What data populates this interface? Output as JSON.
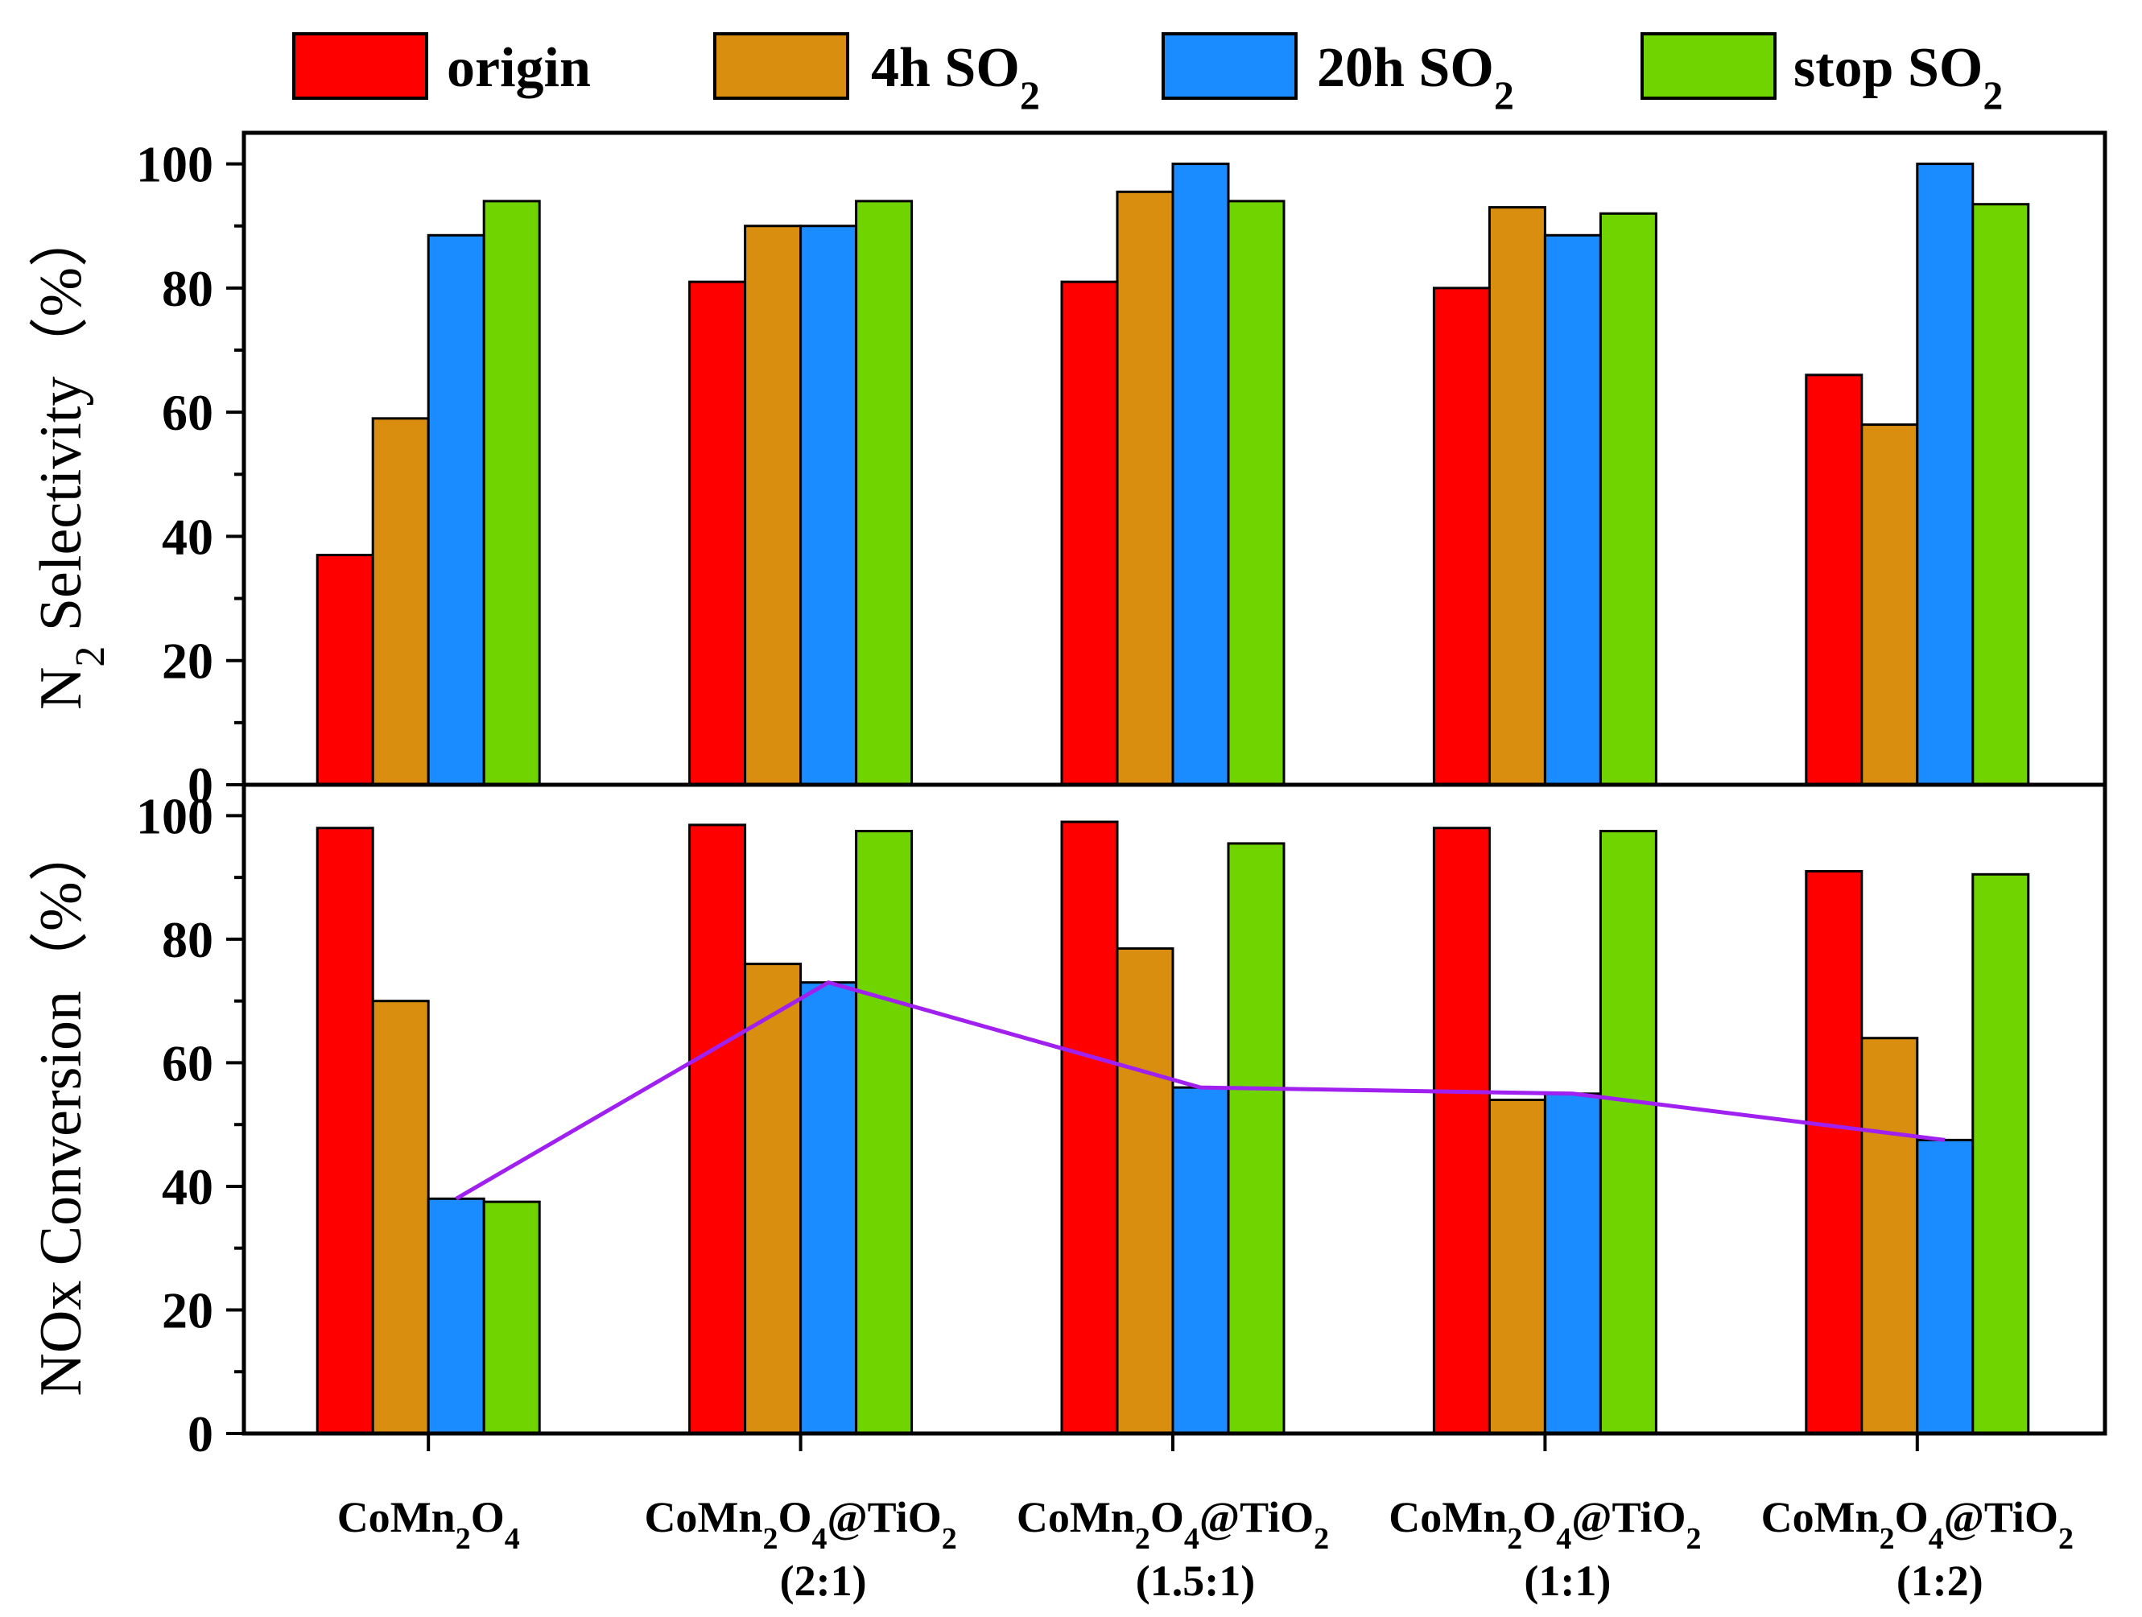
{
  "chart_data": {
    "type": "bar",
    "legend": {
      "placement": "top",
      "entries": [
        {
          "name": "origin",
          "color": "#ff0000",
          "text": "origin",
          "sub": ""
        },
        {
          "name": "4h SO2",
          "color": "#d98e0f",
          "text": "4h SO",
          "sub": "2"
        },
        {
          "name": "20h SO2",
          "color": "#1a8cff",
          "text": "20h SO",
          "sub": "2"
        },
        {
          "name": "stop SO2",
          "color": "#6fd400",
          "text": "stop SO",
          "sub": "2"
        }
      ]
    },
    "categories": [
      {
        "name": "CoMn2O4",
        "line1": [
          [
            "Co",
            ""
          ],
          [
            "Mn",
            ""
          ],
          [
            "2",
            "sub"
          ],
          [
            "O",
            ""
          ],
          [
            "4",
            "sub"
          ]
        ],
        "line2": ""
      },
      {
        "name": "CoMn2O4@TiO2 (2:1)",
        "line1": [
          [
            "Co",
            ""
          ],
          [
            "Mn",
            ""
          ],
          [
            "2",
            "sub"
          ],
          [
            "O",
            ""
          ],
          [
            "4",
            "sub"
          ],
          [
            "@Ti",
            ""
          ],
          [
            "O",
            ""
          ],
          [
            "2",
            "sub"
          ]
        ],
        "line2": "(2:1)"
      },
      {
        "name": "CoMn2O4@TiO2 (1.5:1)",
        "line1": [
          [
            "Co",
            ""
          ],
          [
            "Mn",
            ""
          ],
          [
            "2",
            "sub"
          ],
          [
            "O",
            ""
          ],
          [
            "4",
            "sub"
          ],
          [
            "@Ti",
            ""
          ],
          [
            "O",
            ""
          ],
          [
            "2",
            "sub"
          ]
        ],
        "line2": "(1.5:1)"
      },
      {
        "name": "CoMn2O4@TiO2 (1:1)",
        "line1": [
          [
            "Co",
            ""
          ],
          [
            "Mn",
            ""
          ],
          [
            "2",
            "sub"
          ],
          [
            "O",
            ""
          ],
          [
            "4",
            "sub"
          ],
          [
            "@Ti",
            ""
          ],
          [
            "O",
            ""
          ],
          [
            "2",
            "sub"
          ]
        ],
        "line2": "(1:1)"
      },
      {
        "name": "CoMn2O4@TiO2 (1:2)",
        "line1": [
          [
            "Co",
            ""
          ],
          [
            "Mn",
            ""
          ],
          [
            "2",
            "sub"
          ],
          [
            "O",
            ""
          ],
          [
            "4",
            "sub"
          ],
          [
            "@Ti",
            ""
          ],
          [
            "O",
            ""
          ],
          [
            "2",
            "sub"
          ]
        ],
        "line2": "(1:2)"
      }
    ],
    "panels": [
      {
        "name": "n2-selectivity",
        "ylabel": {
          "pre": "N",
          "sub": "2",
          "post": " Selectivity（%）"
        },
        "ylim": [
          0,
          105
        ],
        "yticks": [
          0,
          20,
          40,
          60,
          80,
          100
        ],
        "series": [
          {
            "name": "origin",
            "values": [
              37,
              81,
              81,
              80,
              66
            ]
          },
          {
            "name": "4h SO2",
            "values": [
              59,
              90,
              95.5,
              93,
              58
            ]
          },
          {
            "name": "20h SO2",
            "values": [
              88.5,
              90,
              100,
              88.5,
              100
            ]
          },
          {
            "name": "stop SO2",
            "values": [
              94,
              94,
              94,
              92,
              93.5
            ]
          }
        ]
      },
      {
        "name": "nox-conversion",
        "ylabel": {
          "pre": "NOx Conversion（%）",
          "sub": "",
          "post": ""
        },
        "ylim": [
          0,
          105
        ],
        "yticks": [
          0,
          20,
          40,
          60,
          80,
          100
        ],
        "series": [
          {
            "name": "origin",
            "values": [
              98,
              98.5,
              99,
              98,
              91
            ]
          },
          {
            "name": "4h SO2",
            "values": [
              70,
              76,
              78.5,
              54,
              64
            ]
          },
          {
            "name": "20h SO2",
            "values": [
              38,
              73,
              56,
              55,
              47.5
            ]
          },
          {
            "name": "stop SO2",
            "values": [
              37.5,
              97.5,
              95.5,
              97.5,
              90.5
            ]
          }
        ],
        "trend_line": {
          "series": "20h SO2",
          "color": "#a020f0",
          "values": [
            38,
            73,
            56,
            55,
            47.5
          ]
        }
      }
    ]
  }
}
